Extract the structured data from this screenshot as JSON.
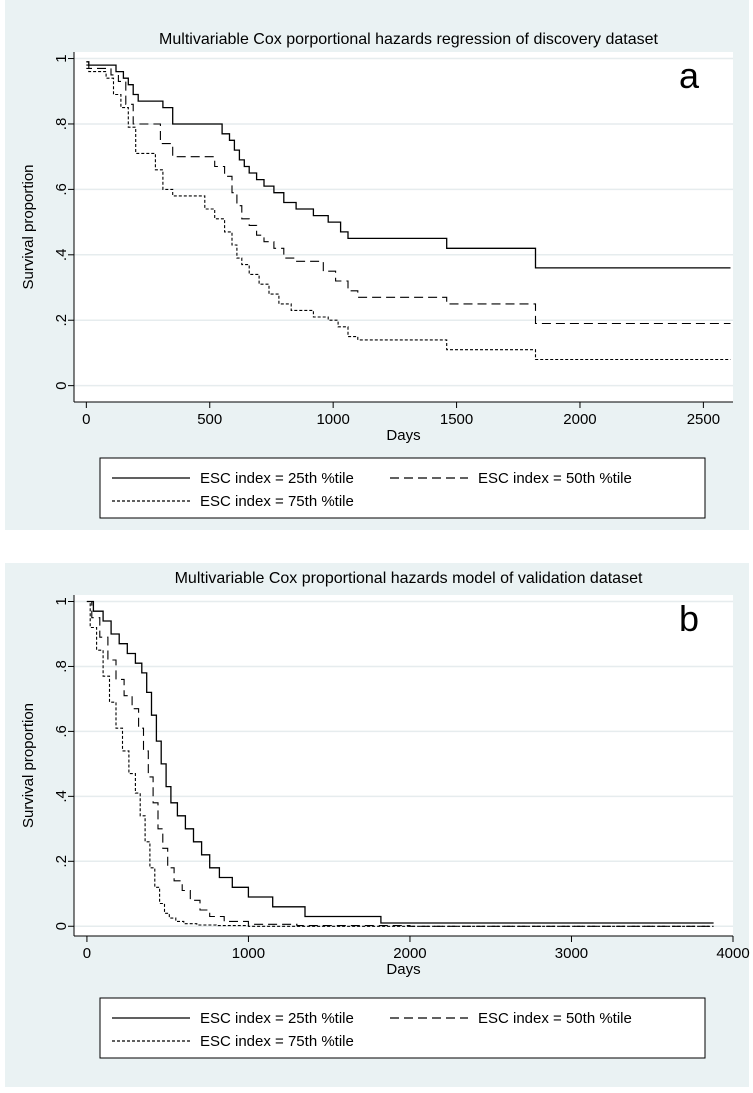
{
  "chart_data": [
    {
      "type": "line",
      "panel_letter": "a",
      "title": "Multivariable Cox porportional hazards regression of discovery dataset",
      "xlabel": "Days",
      "ylabel": "Survival proportion",
      "xlim": [
        -50,
        2620
      ],
      "ylim": [
        -0.05,
        1.02
      ],
      "xticks": [
        0,
        500,
        1000,
        1500,
        2000,
        2500
      ],
      "yticks": [
        0,
        0.2,
        0.4,
        0.6,
        0.8,
        1
      ],
      "ytick_labels": [
        "0",
        ".2",
        ".4",
        ".6",
        ".8",
        "1"
      ],
      "grid": true,
      "legend_position": "bottom",
      "series": [
        {
          "name": "ESC index = 25th %tile",
          "style": "solid",
          "x": [
            0,
            10,
            120,
            150,
            170,
            190,
            210,
            230,
            310,
            350,
            500,
            550,
            580,
            600,
            620,
            640,
            660,
            690,
            720,
            760,
            800,
            850,
            920,
            980,
            1030,
            1060,
            1100,
            1460,
            1820,
            2610
          ],
          "y": [
            0.99,
            0.98,
            0.96,
            0.94,
            0.92,
            0.89,
            0.87,
            0.87,
            0.85,
            0.8,
            0.8,
            0.77,
            0.75,
            0.72,
            0.69,
            0.67,
            0.65,
            0.63,
            0.61,
            0.59,
            0.56,
            0.54,
            0.52,
            0.5,
            0.47,
            0.45,
            0.45,
            0.42,
            0.36,
            0.36
          ]
        },
        {
          "name": "ESC index = 50th %tile",
          "style": "dashed",
          "x": [
            0,
            10,
            100,
            130,
            160,
            190,
            220,
            300,
            350,
            480,
            520,
            560,
            590,
            610,
            630,
            660,
            690,
            720,
            760,
            800,
            850,
            960,
            1010,
            1060,
            1100,
            1460,
            1820,
            2610
          ],
          "y": [
            0.98,
            0.97,
            0.95,
            0.93,
            0.86,
            0.8,
            0.8,
            0.74,
            0.7,
            0.7,
            0.67,
            0.64,
            0.59,
            0.55,
            0.51,
            0.49,
            0.46,
            0.44,
            0.42,
            0.39,
            0.38,
            0.35,
            0.32,
            0.29,
            0.27,
            0.25,
            0.19,
            0.19
          ]
        },
        {
          "name": "ESC index = 75th %tile",
          "style": "dotted",
          "x": [
            0,
            10,
            80,
            110,
            140,
            170,
            200,
            240,
            280,
            310,
            350,
            480,
            520,
            560,
            590,
            610,
            630,
            660,
            700,
            740,
            780,
            830,
            920,
            980,
            1020,
            1060,
            1100,
            1460,
            1820,
            2610
          ],
          "y": [
            0.97,
            0.96,
            0.94,
            0.89,
            0.85,
            0.79,
            0.71,
            0.71,
            0.66,
            0.6,
            0.58,
            0.54,
            0.51,
            0.47,
            0.43,
            0.39,
            0.37,
            0.34,
            0.31,
            0.28,
            0.25,
            0.23,
            0.21,
            0.2,
            0.18,
            0.15,
            0.14,
            0.11,
            0.08,
            0.08
          ]
        }
      ]
    },
    {
      "type": "line",
      "panel_letter": "b",
      "title": "Multivariable Cox proportional hazards model of validation dataset",
      "xlabel": "Days",
      "ylabel": "Survival proportion",
      "xlim": [
        -80,
        4000
      ],
      "ylim": [
        -0.03,
        1.02
      ],
      "xticks": [
        0,
        1000,
        2000,
        3000,
        4000
      ],
      "yticks": [
        0,
        0.2,
        0.4,
        0.6,
        0.8,
        1
      ],
      "ytick_labels": [
        "0",
        ".2",
        ".4",
        ".6",
        ".8",
        "1"
      ],
      "grid": true,
      "legend_position": "bottom",
      "series": [
        {
          "name": "ESC index = 25th %tile",
          "style": "solid",
          "x": [
            0,
            40,
            100,
            150,
            200,
            250,
            300,
            340,
            370,
            400,
            430,
            460,
            490,
            520,
            560,
            610,
            660,
            710,
            760,
            820,
            900,
            1000,
            1150,
            1350,
            1820,
            2500,
            3880
          ],
          "y": [
            1.0,
            0.97,
            0.94,
            0.9,
            0.87,
            0.84,
            0.81,
            0.78,
            0.72,
            0.65,
            0.57,
            0.5,
            0.43,
            0.38,
            0.34,
            0.3,
            0.26,
            0.22,
            0.18,
            0.15,
            0.12,
            0.09,
            0.06,
            0.03,
            0.01,
            0.01,
            0.01
          ]
        },
        {
          "name": "ESC index = 50th %tile",
          "style": "dashed",
          "x": [
            0,
            30,
            80,
            130,
            180,
            230,
            280,
            320,
            350,
            380,
            410,
            440,
            470,
            500,
            540,
            590,
            640,
            700,
            760,
            850,
            1000,
            1300,
            2000,
            3880
          ],
          "y": [
            1.0,
            0.95,
            0.89,
            0.82,
            0.76,
            0.71,
            0.67,
            0.61,
            0.54,
            0.46,
            0.38,
            0.3,
            0.24,
            0.18,
            0.14,
            0.11,
            0.08,
            0.05,
            0.03,
            0.015,
            0.006,
            0.002,
            0.0,
            0.0
          ]
        },
        {
          "name": "ESC index = 75th %tile",
          "style": "dotted",
          "x": [
            0,
            20,
            60,
            100,
            140,
            180,
            220,
            260,
            300,
            330,
            360,
            390,
            420,
            450,
            480,
            510,
            550,
            600,
            680,
            800,
            1000,
            1500,
            3880
          ],
          "y": [
            1.0,
            0.92,
            0.85,
            0.77,
            0.69,
            0.61,
            0.54,
            0.47,
            0.41,
            0.34,
            0.26,
            0.18,
            0.12,
            0.07,
            0.04,
            0.025,
            0.015,
            0.008,
            0.004,
            0.002,
            0.0,
            0.0,
            0.0
          ]
        }
      ]
    }
  ]
}
